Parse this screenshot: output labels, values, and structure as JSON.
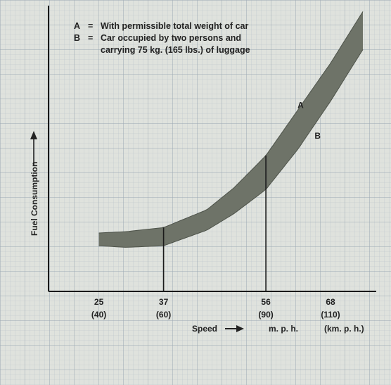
{
  "chart_data": {
    "type": "area",
    "xlabel": "Speed",
    "ylabel": "Fuel Consumption",
    "units": [
      "m. p. h.",
      "(km. p. h.)"
    ],
    "x_ticks": [
      {
        "value": 25,
        "label": "25",
        "sublabel": "(40)"
      },
      {
        "value": 37,
        "label": "37",
        "sublabel": "(60)"
      },
      {
        "value": 56,
        "label": "56",
        "sublabel": "(90)"
      },
      {
        "value": 68,
        "label": "68",
        "sublabel": "(110)"
      }
    ],
    "xlim": [
      21,
      74
    ],
    "ylim": [
      0,
      100
    ],
    "reference_lines": [
      37,
      56
    ],
    "legend": [
      {
        "key": "A",
        "dash": "=",
        "text": [
          "With permissible total weight of car"
        ]
      },
      {
        "key": "B",
        "dash": "=",
        "text": [
          "Car occupied by two persons and",
          "carrying 75 kg. (165 lbs.) of luggage"
        ]
      }
    ],
    "series": [
      {
        "name": "A",
        "x": [
          25,
          30,
          37,
          45,
          50,
          56,
          62,
          68,
          74
        ],
        "values": [
          21.5,
          22,
          23.5,
          30,
          38,
          50,
          67,
          84,
          103
        ]
      },
      {
        "name": "B",
        "x": [
          25,
          30,
          37,
          45,
          50,
          56,
          62,
          68,
          74
        ],
        "values": [
          16.8,
          16.2,
          16.8,
          22.5,
          28.5,
          37.5,
          52.5,
          70,
          89
        ]
      }
    ],
    "band_color": "#6e7368"
  }
}
